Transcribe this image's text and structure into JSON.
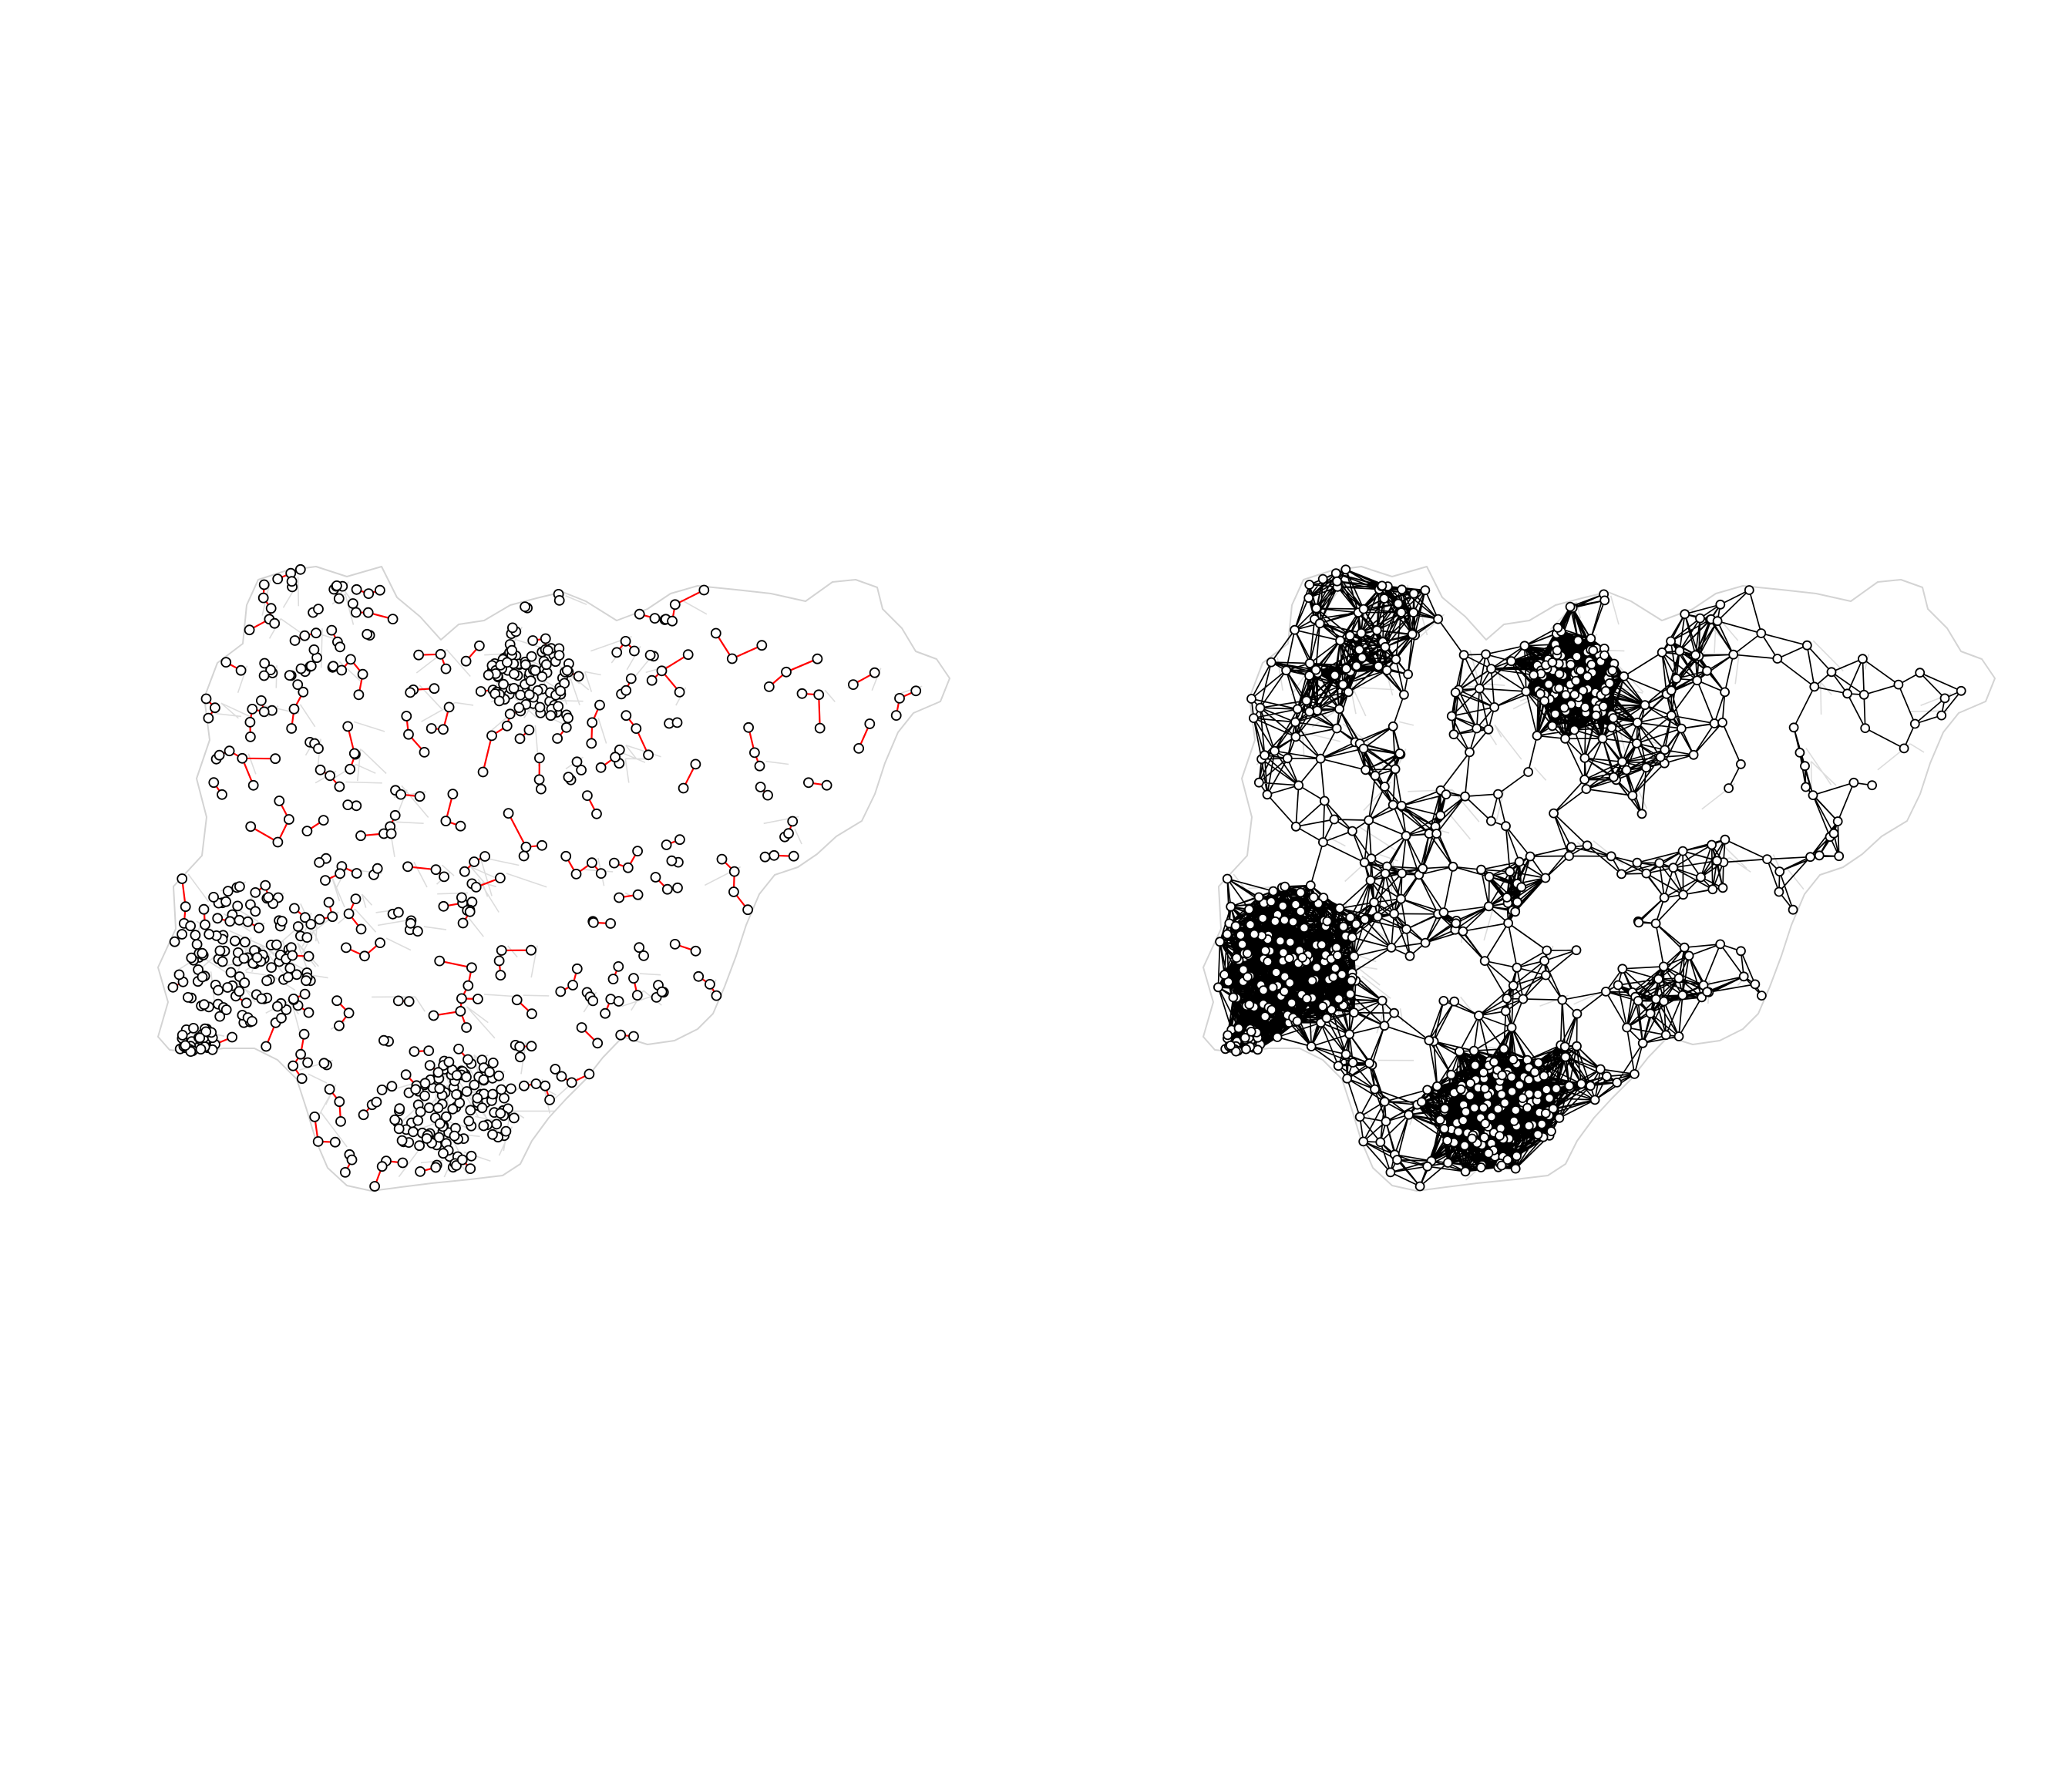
{
  "figure": {
    "description_free": true,
    "panels": [
      {
        "id": "left",
        "map_region": "Nigeria",
        "boundary_color": "#d3d3d3",
        "edge_color": "#ff0000",
        "node_stroke": "#000000",
        "node_fill": "#ffffff",
        "neighbour_type": "nearest-neighbour"
      },
      {
        "id": "right",
        "map_region": "Nigeria",
        "boundary_color": "#d3d3d3",
        "edge_color": "#000000",
        "node_stroke": "#000000",
        "node_fill": "#ffffff",
        "neighbour_type": "distance-band"
      }
    ]
  }
}
